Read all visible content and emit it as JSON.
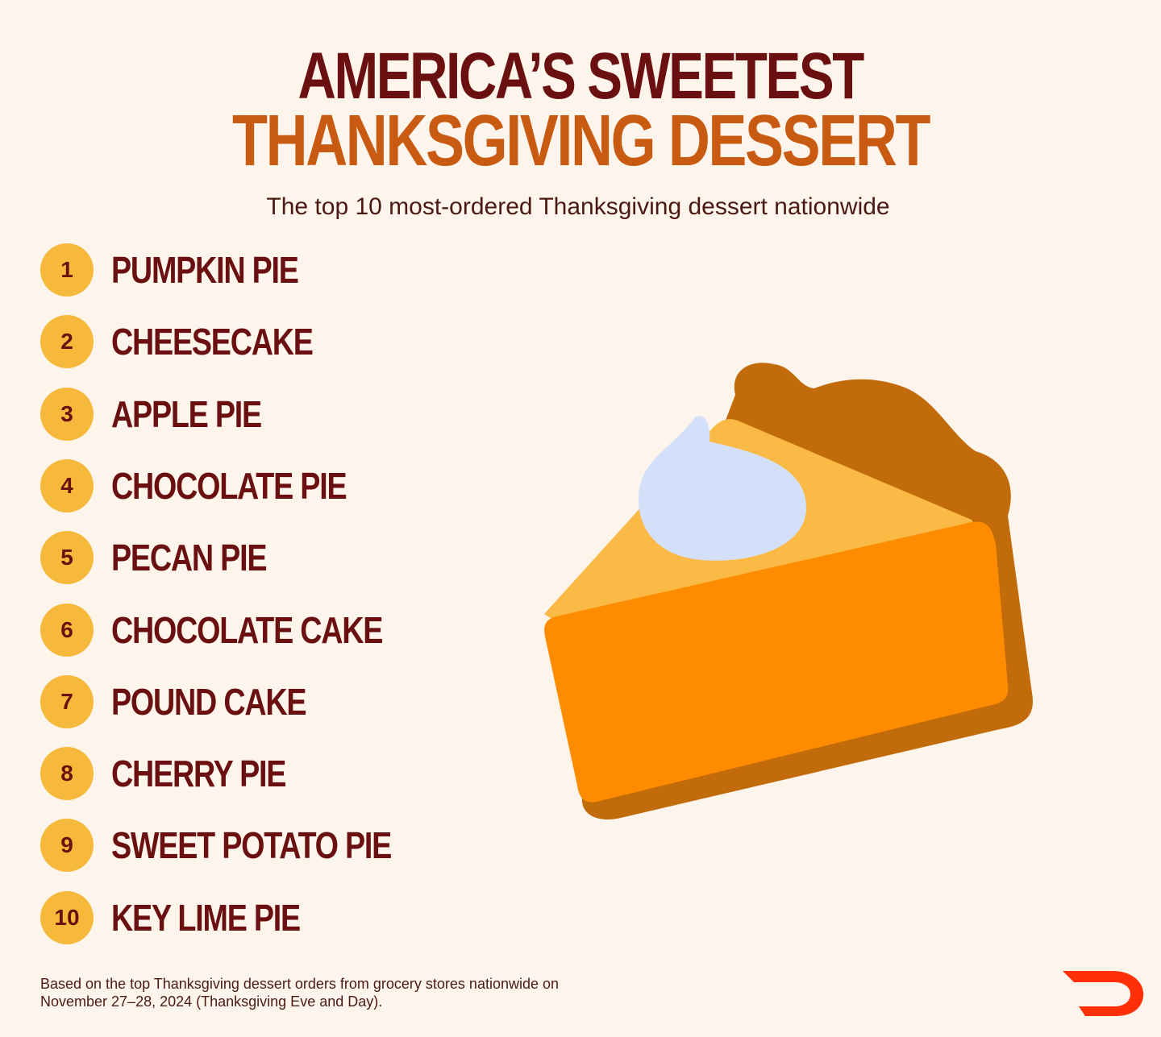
{
  "header": {
    "title_line1": "AMERICA’S SWEETEST",
    "title_line2": "THANKSGIVING DESSERT",
    "subtitle": "The top 10 most-ordered Thanksgiving dessert nationwide"
  },
  "ranking": [
    {
      "rank": "1",
      "name": "PUMPKIN PIE"
    },
    {
      "rank": "2",
      "name": "CHEESECAKE"
    },
    {
      "rank": "3",
      "name": "APPLE PIE"
    },
    {
      "rank": "4",
      "name": "CHOCOLATE PIE"
    },
    {
      "rank": "5",
      "name": "PECAN PIE"
    },
    {
      "rank": "6",
      "name": "CHOCOLATE CAKE"
    },
    {
      "rank": "7",
      "name": "POUND CAKE"
    },
    {
      "rank": "8",
      "name": "CHERRY PIE"
    },
    {
      "rank": "9",
      "name": "SWEET POTATO PIE"
    },
    {
      "rank": "10",
      "name": "KEY LIME PIE"
    }
  ],
  "footer": {
    "note_line1": "Based on the top Thanksgiving dessert orders from grocery stores nationwide on",
    "note_line2": "November 27–28, 2024 (Thanksgiving Eve and Day)."
  },
  "illustration": "pumpkin-pie-slice",
  "logo": "doordash-logo",
  "colors": {
    "background": "#FDF5EC",
    "title_dark": "#6B1010",
    "title_orange": "#C85A12",
    "badge": "#F6B93B",
    "logo": "#FF3008"
  }
}
